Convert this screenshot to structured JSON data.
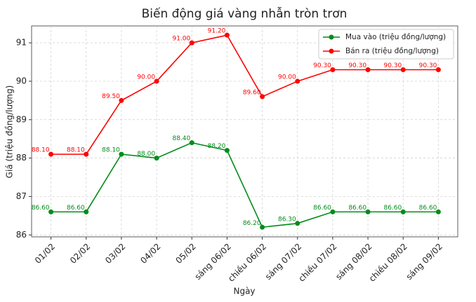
{
  "chart_data": {
    "type": "line",
    "title": "Biến động giá vàng nhẫn tròn trơn",
    "x_label": "Ngày",
    "y_label": "Giá (triệu đồng/lượng)",
    "categories": [
      "01/02",
      "02/02",
      "03/02",
      "04/02",
      "05/02",
      "sáng 06/02",
      "chiều 06/02",
      "sáng 07/02",
      "chiều 07/02",
      "sáng 08/02",
      "chiều 08/02",
      "sáng 09/02"
    ],
    "series": [
      {
        "name": "Mua vào (triệu đồng/lượng)",
        "color": "#008c1a",
        "values": [
          86.6,
          86.6,
          88.1,
          88.0,
          88.4,
          88.2,
          86.2,
          86.3,
          86.6,
          86.6,
          86.6,
          86.6
        ],
        "value_labels": [
          "86.60",
          "86.60",
          "88.10",
          "88.00",
          "88.40",
          "88.20",
          "86.20",
          "86.30",
          "86.60",
          "86.60",
          "86.60",
          "86.60"
        ]
      },
      {
        "name": "Bán ra (triệu đồng/lượng)",
        "color": "#ff0000",
        "values": [
          88.1,
          88.1,
          89.5,
          90.0,
          91.0,
          91.2,
          89.6,
          90.0,
          90.3,
          90.3,
          90.3,
          90.3
        ],
        "value_labels": [
          "88.10",
          "88.10",
          "89.50",
          "90.00",
          "91.00",
          "91.20",
          "89.60",
          "90.00",
          "90.30",
          "90.30",
          "90.30",
          "90.30"
        ]
      }
    ],
    "ylim": [
      85.95,
      91.44
    ],
    "yticks": [
      86,
      87,
      88,
      89,
      90,
      91
    ],
    "grid": true,
    "legend": "upper right"
  }
}
